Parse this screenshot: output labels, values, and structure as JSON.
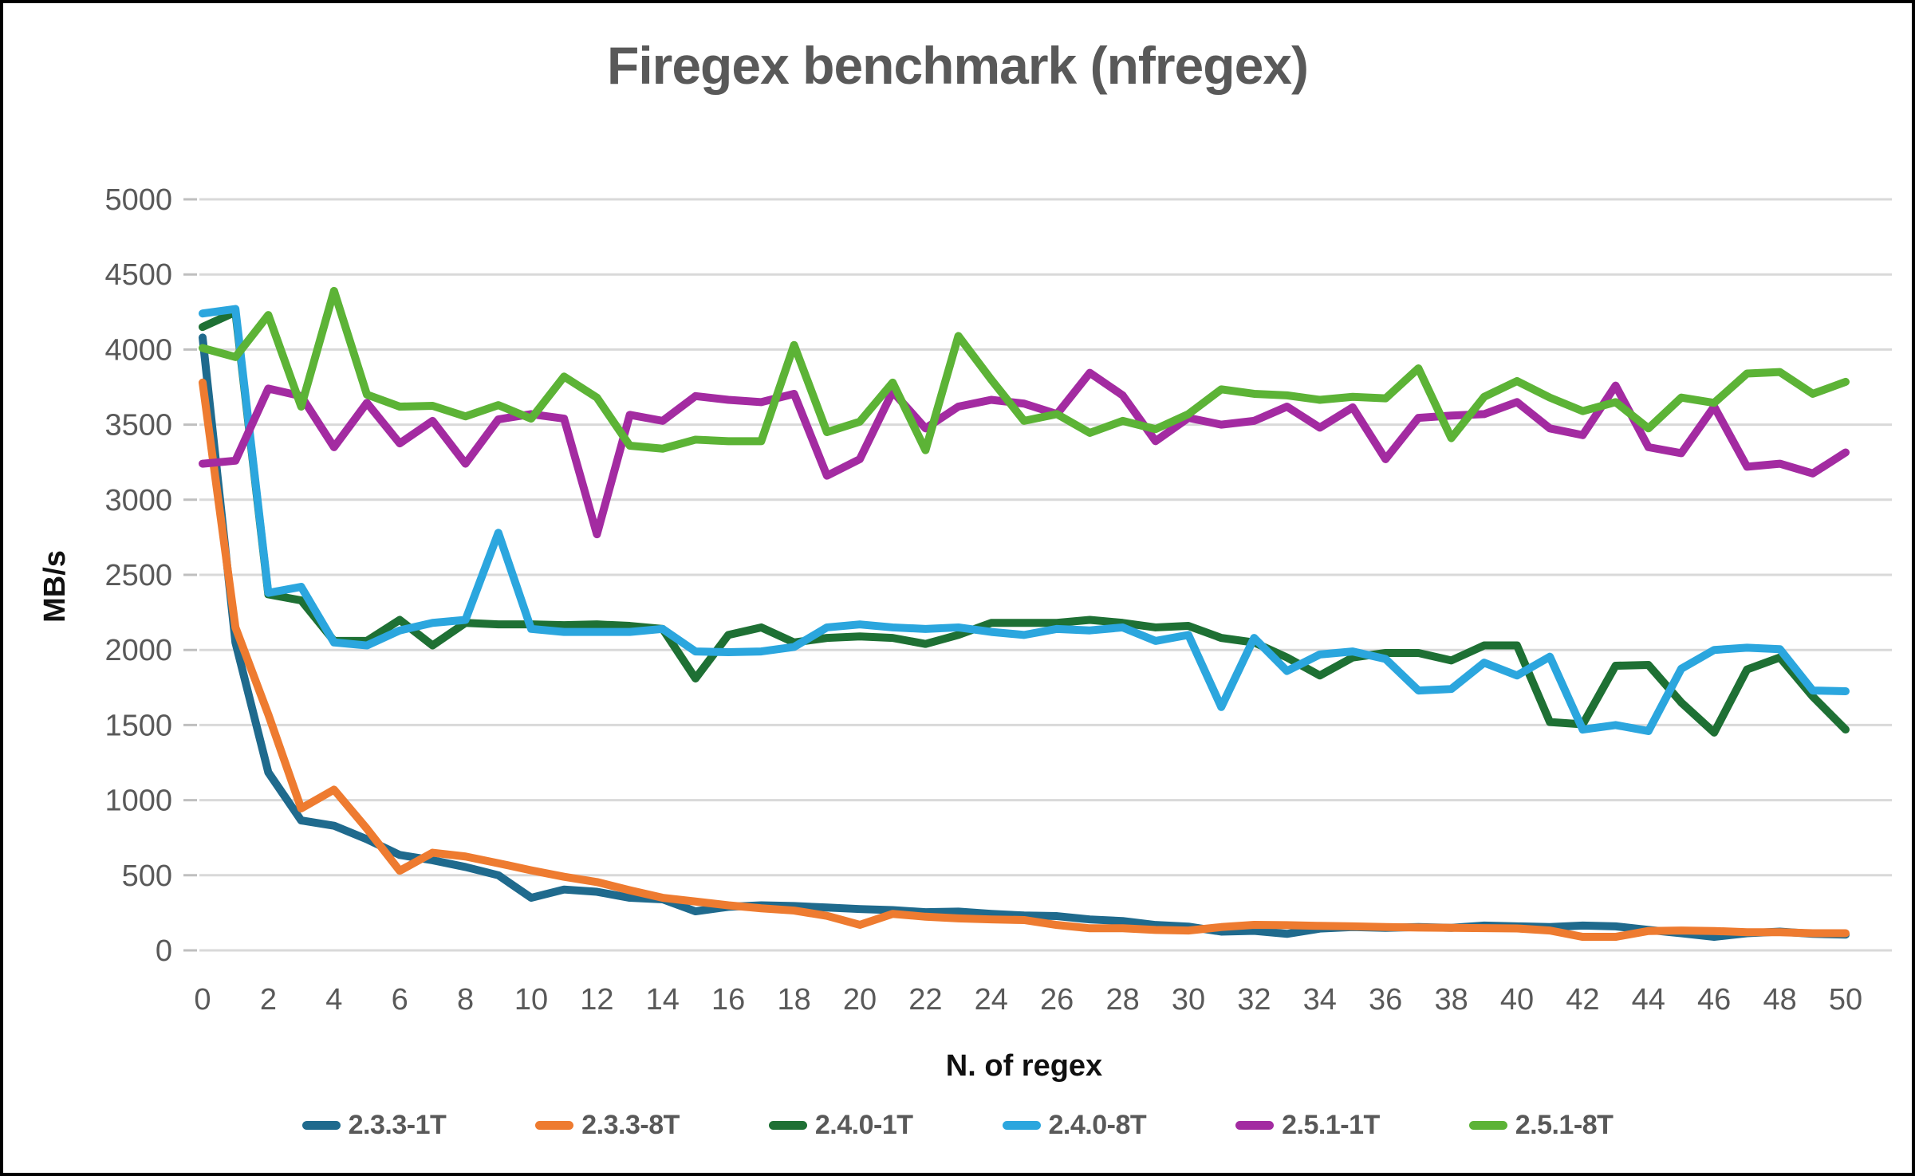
{
  "chart": {
    "title": "Firegex benchmark (nfregex)",
    "ylabel": "MB/s",
    "xlabel": "N. of regex"
  },
  "chart_data": {
    "type": "line",
    "title": "Firegex benchmark (nfregex)",
    "xlabel": "N. of regex",
    "ylabel": "MB/s",
    "ylim": [
      0,
      5000
    ],
    "y_tick_step": 500,
    "xlim": [
      0,
      50
    ],
    "x_tick_step": 2,
    "grid": "horizontal",
    "grid_color": "#D9D9D9",
    "axis_text_color": "#595959",
    "legend_position": "bottom",
    "x": [
      0,
      1,
      2,
      3,
      4,
      5,
      6,
      7,
      8,
      9,
      10,
      11,
      12,
      13,
      14,
      15,
      16,
      17,
      18,
      19,
      20,
      21,
      22,
      23,
      24,
      25,
      26,
      27,
      28,
      29,
      30,
      31,
      32,
      33,
      34,
      35,
      36,
      37,
      38,
      39,
      40,
      41,
      42,
      43,
      44,
      45,
      46,
      47,
      48,
      49,
      50
    ],
    "series": [
      {
        "name": "2.3.3-1T",
        "color": "#1F6A8D",
        "values": [
          4080,
          2050,
          1185,
          865,
          830,
          740,
          635,
          600,
          555,
          500,
          350,
          405,
          390,
          350,
          340,
          260,
          290,
          300,
          295,
          285,
          275,
          268,
          254,
          258,
          243,
          232,
          228,
          206,
          195,
          169,
          158,
          125,
          130,
          110,
          145,
          155,
          150,
          155,
          150,
          165,
          160,
          155,
          165,
          160,
          136,
          114,
          90,
          114,
          125,
          110,
          105
        ]
      },
      {
        "name": "2.3.3-8T",
        "color": "#EE7B30",
        "values": [
          3780,
          2150,
          1570,
          945,
          1070,
          810,
          530,
          650,
          625,
          580,
          533,
          490,
          455,
          400,
          350,
          325,
          300,
          280,
          265,
          230,
          170,
          243,
          224,
          213,
          206,
          202,
          169,
          147,
          147,
          136,
          132,
          155,
          170,
          168,
          163,
          160,
          155,
          152,
          150,
          148,
          146,
          132,
          90,
          90,
          129,
          132,
          129,
          121,
          121,
          114,
          114
        ]
      },
      {
        "name": "2.4.0-1T",
        "color": "#1E7034",
        "values": [
          4150,
          4250,
          2370,
          2330,
          2060,
          2060,
          2200,
          2030,
          2180,
          2170,
          2170,
          2165,
          2170,
          2160,
          2140,
          1810,
          2100,
          2150,
          2050,
          2080,
          2090,
          2080,
          2040,
          2100,
          2180,
          2180,
          2180,
          2200,
          2180,
          2150,
          2160,
          2080,
          2050,
          1950,
          1830,
          1950,
          1980,
          1980,
          1930,
          2030,
          2030,
          1520,
          1505,
          1895,
          1900,
          1650,
          1450,
          1870,
          1950,
          1690,
          1470
        ]
      },
      {
        "name": "2.4.0-8T",
        "color": "#2BA6DE",
        "values": [
          4240,
          4270,
          2380,
          2420,
          2050,
          2030,
          2130,
          2180,
          2200,
          2780,
          2140,
          2120,
          2120,
          2120,
          2140,
          1990,
          1985,
          1990,
          2020,
          2150,
          2170,
          2150,
          2140,
          2150,
          2120,
          2100,
          2140,
          2130,
          2150,
          2060,
          2100,
          1620,
          2080,
          1860,
          1970,
          1990,
          1940,
          1730,
          1740,
          1915,
          1830,
          1955,
          1470,
          1500,
          1460,
          1875,
          2000,
          2015,
          2005,
          1730,
          1725
        ]
      },
      {
        "name": "2.5.1-1T",
        "color": "#A32BA1",
        "values": [
          3240,
          3260,
          3740,
          3690,
          3350,
          3645,
          3375,
          3525,
          3240,
          3535,
          3570,
          3540,
          2770,
          3565,
          3525,
          3690,
          3665,
          3650,
          3705,
          3160,
          3270,
          3720,
          3475,
          3620,
          3665,
          3640,
          3570,
          3845,
          3695,
          3390,
          3545,
          3500,
          3525,
          3620,
          3480,
          3615,
          3270,
          3545,
          3560,
          3570,
          3650,
          3475,
          3430,
          3760,
          3350,
          3310,
          3620,
          3220,
          3240,
          3175,
          3315
        ]
      },
      {
        "name": "2.5.1-8T",
        "color": "#5CB336",
        "values": [
          4010,
          3950,
          4230,
          3620,
          4390,
          3700,
          3620,
          3625,
          3555,
          3630,
          3540,
          3820,
          3680,
          3360,
          3340,
          3400,
          3390,
          3390,
          4030,
          3450,
          3520,
          3780,
          3330,
          4090,
          3800,
          3525,
          3570,
          3445,
          3525,
          3470,
          3570,
          3735,
          3705,
          3695,
          3665,
          3685,
          3675,
          3875,
          3410,
          3685,
          3790,
          3680,
          3590,
          3650,
          3475,
          3680,
          3645,
          3840,
          3850,
          3705,
          3785
        ]
      }
    ]
  }
}
